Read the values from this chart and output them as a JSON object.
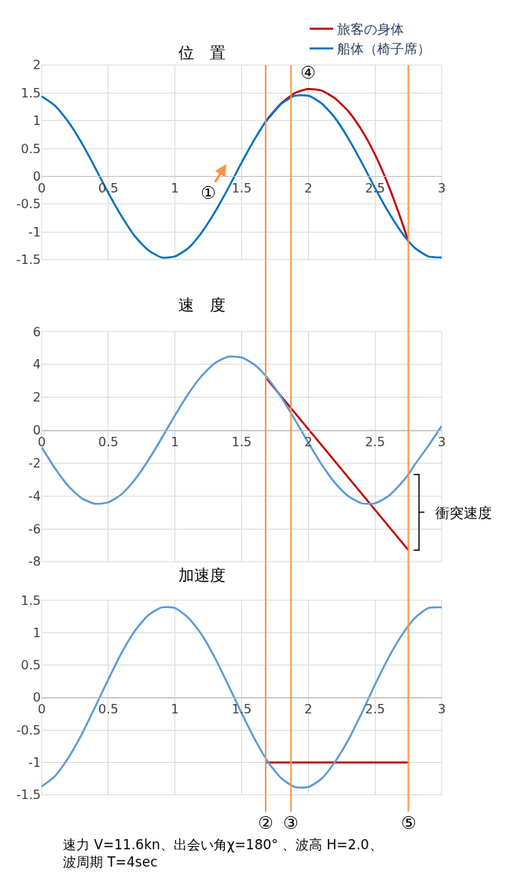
{
  "chart_data": [
    {
      "type": "line",
      "title": "位　置",
      "xlim": [
        0,
        3
      ],
      "xticks": [
        0,
        0.5,
        1,
        1.5,
        2,
        2.5,
        3
      ],
      "ylim": [
        -1.5,
        2
      ],
      "yticks": [
        -1.5,
        -1,
        -0.5,
        0,
        0.5,
        1,
        1.5,
        2
      ],
      "grid": true,
      "legend": "top right",
      "ref_lines": [
        {
          "axis": "x",
          "value": 1.68,
          "color": "#f79646"
        },
        {
          "axis": "x",
          "value": 1.87,
          "color": "#f79646"
        },
        {
          "axis": "x",
          "value": 2.75,
          "color": "#f79646"
        }
      ],
      "annotations": [
        {
          "text": "④",
          "x": 2.0,
          "y": 1.57
        },
        "①"
      ],
      "series": [
        {
          "name": "旅客の身体",
          "color": "#c00000",
          "x": [
            1.68,
            1.7,
            1.8,
            1.9,
            2.0,
            2.1,
            2.2,
            2.3,
            2.4,
            2.5,
            2.6,
            2.7,
            2.75
          ],
          "values": [
            0.98,
            1.04,
            1.32,
            1.5,
            1.57,
            1.54,
            1.4,
            1.17,
            0.83,
            0.39,
            -0.16,
            -0.81,
            -1.17
          ]
        },
        {
          "name": "船体（椅子席）",
          "color": "#0070c0",
          "x": [
            0,
            0.1,
            0.2,
            0.3,
            0.4,
            0.5,
            0.6,
            0.7,
            0.8,
            0.9,
            1.0,
            1.1,
            1.2,
            1.3,
            1.4,
            1.5,
            1.6,
            1.7,
            1.8,
            1.9,
            2.0,
            2.1,
            2.2,
            2.3,
            2.4,
            2.5,
            2.6,
            2.7,
            2.8,
            2.9,
            3.0
          ],
          "values": [
            1.44,
            1.27,
            0.98,
            0.6,
            0.16,
            -0.3,
            -0.72,
            -1.08,
            -1.33,
            -1.46,
            -1.44,
            -1.29,
            -1.01,
            -0.64,
            -0.21,
            0.25,
            0.68,
            1.05,
            1.31,
            1.45,
            1.45,
            1.31,
            1.05,
            0.68,
            0.25,
            -0.21,
            -0.64,
            -1.01,
            -1.29,
            -1.44,
            -1.46
          ]
        }
      ]
    },
    {
      "type": "line",
      "title": "速　度",
      "xlim": [
        0,
        3
      ],
      "xticks": [
        0,
        0.5,
        1,
        1.5,
        2,
        2.5,
        3
      ],
      "ylim": [
        -8,
        6
      ],
      "yticks": [
        -8,
        -6,
        -4,
        -2,
        0,
        2,
        4,
        6
      ],
      "grid": true,
      "ref_lines": [
        {
          "axis": "x",
          "value": 1.68,
          "color": "#f79646"
        },
        {
          "axis": "x",
          "value": 1.87,
          "color": "#f79646"
        },
        {
          "axis": "x",
          "value": 2.75,
          "color": "#f79646"
        }
      ],
      "annotations": [
        {
          "text": "衝突速度",
          "x": 2.75,
          "y": -5
        }
      ],
      "series": [
        {
          "color": "#c00000",
          "x": [
            1.68,
            2.75
          ],
          "values": [
            3.2,
            -7.3
          ]
        },
        {
          "color": "#5b9bd5",
          "x": [
            0,
            0.1,
            0.2,
            0.3,
            0.4,
            0.5,
            0.6,
            0.7,
            0.8,
            0.9,
            1.0,
            1.1,
            1.2,
            1.3,
            1.4,
            1.5,
            1.6,
            1.7,
            1.8,
            1.9,
            2.0,
            2.1,
            2.2,
            2.3,
            2.4,
            2.5,
            2.6,
            2.7,
            2.75,
            2.8,
            2.9,
            3.0
          ],
          "values": [
            -1.04,
            -2.32,
            -3.4,
            -4.14,
            -4.48,
            -4.39,
            -3.89,
            -3.0,
            -1.83,
            -0.49,
            0.9,
            2.21,
            3.3,
            4.08,
            4.47,
            4.42,
            3.96,
            3.11,
            1.96,
            0.63,
            -0.77,
            -2.09,
            -3.21,
            -4.02,
            -4.45,
            -4.45,
            -4.02,
            -3.2,
            -2.7,
            -2.08,
            -0.95,
            0.25
          ]
        }
      ]
    },
    {
      "type": "line",
      "title": "加速度",
      "xlim": [
        0,
        3
      ],
      "xticks": [
        0,
        0.5,
        1,
        1.5,
        2,
        2.5,
        3
      ],
      "ylim": [
        -1.5,
        1.5
      ],
      "yticks": [
        -1.5,
        -1,
        -0.5,
        0,
        0.5,
        1,
        1.5
      ],
      "grid": true,
      "ref_lines": [
        {
          "axis": "x",
          "value": 1.68,
          "label": "②",
          "color": "#f79646"
        },
        {
          "axis": "x",
          "value": 1.87,
          "label": "③",
          "color": "#f79646"
        },
        {
          "axis": "x",
          "value": 2.75,
          "label": "⑤",
          "color": "#f79646"
        }
      ],
      "annotations": [
        "速力 V=11.6kn、出会い角χ=180° 、波高 H=2.0、波周期 T=4sec"
      ],
      "series": [
        {
          "color": "#c00000",
          "x": [
            1.68,
            2.75
          ],
          "values": [
            -1,
            -1
          ]
        },
        {
          "color": "#5b9bd5",
          "x": [
            0,
            0.1,
            0.2,
            0.3,
            0.4,
            0.5,
            0.6,
            0.7,
            0.8,
            0.9,
            1.0,
            1.1,
            1.2,
            1.3,
            1.4,
            1.5,
            1.6,
            1.7,
            1.8,
            1.9,
            2.0,
            2.1,
            2.2,
            2.3,
            2.4,
            2.5,
            2.6,
            2.7,
            2.8,
            2.9,
            3.0
          ],
          "values": [
            -1.37,
            -1.21,
            -0.93,
            -0.57,
            -0.15,
            0.28,
            0.69,
            1.03,
            1.27,
            1.39,
            1.38,
            1.23,
            0.97,
            0.61,
            0.19,
            -0.24,
            -0.65,
            -1.0,
            -1.25,
            -1.38,
            -1.38,
            -1.25,
            -0.99,
            -0.65,
            -0.24,
            0.2,
            0.61,
            0.96,
            1.23,
            1.38,
            1.39
          ]
        }
      ]
    }
  ]
}
